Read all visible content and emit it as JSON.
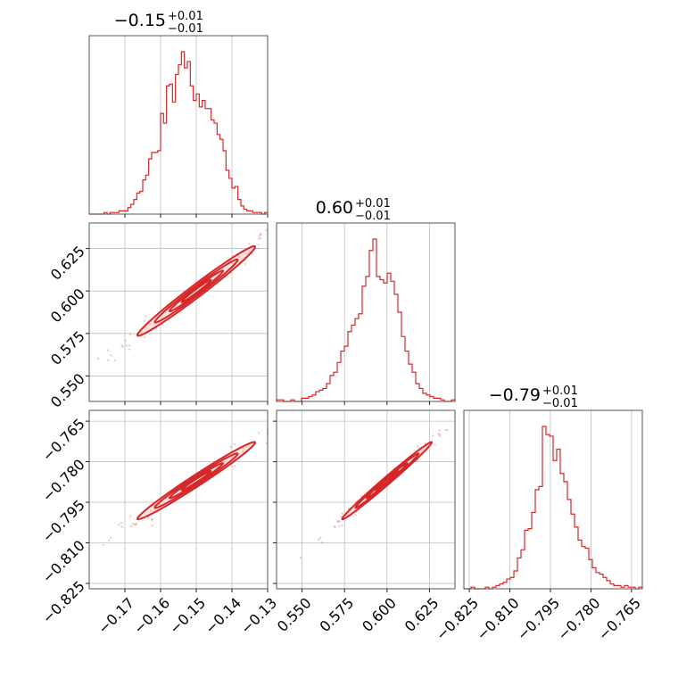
{
  "chart_data": {
    "type": "corner",
    "color": "#d62728",
    "parameters": [
      {
        "title": "−0.15",
        "title_plus": "+0.01",
        "title_minus": "−0.01",
        "median": -0.15,
        "sigma": 0.0075,
        "range": [
          -0.18,
          -0.13
        ],
        "ticks": [
          -0.17,
          -0.16,
          -0.15,
          -0.14,
          -0.13
        ],
        "tick_labels": [
          "−0.17",
          "−0.16",
          "−0.15",
          "−0.14",
          "−0.13"
        ],
        "hist": [
          0.0,
          0.0,
          0.0,
          0.0,
          0.0,
          0.01,
          0.0,
          0.01,
          0.01,
          0.01,
          0.02,
          0.02,
          0.02,
          0.04,
          0.06,
          0.09,
          0.13,
          0.14,
          0.21,
          0.24,
          0.34,
          0.38,
          0.38,
          0.39,
          0.62,
          0.56,
          0.79,
          0.8,
          0.69,
          0.86,
          0.92,
          1.0,
          0.9,
          0.94,
          0.79,
          0.7,
          0.74,
          0.66,
          0.7,
          0.65,
          0.65,
          0.58,
          0.56,
          0.49,
          0.46,
          0.39,
          0.27,
          0.22,
          0.16,
          0.17,
          0.09,
          0.05,
          0.03,
          0.02,
          0.02,
          0.01,
          0.01,
          0.01,
          0.0,
          0.01
        ]
      },
      {
        "title": "0.60",
        "title_plus": "+0.01",
        "title_minus": "−0.01",
        "median": 0.6,
        "sigma": 0.012,
        "range": [
          0.535,
          0.64
        ],
        "ticks": [
          0.55,
          0.575,
          0.6,
          0.625
        ],
        "tick_labels": [
          "0.550",
          "0.575",
          "0.600",
          "0.625"
        ],
        "hist": [
          0.01,
          0.01,
          0.0,
          0.0,
          0.01,
          0.0,
          0.0,
          0.02,
          0.02,
          0.03,
          0.04,
          0.06,
          0.07,
          0.08,
          0.11,
          0.16,
          0.18,
          0.24,
          0.31,
          0.34,
          0.43,
          0.47,
          0.51,
          0.54,
          0.71,
          0.77,
          0.93,
          1.0,
          0.77,
          0.75,
          0.73,
          0.79,
          0.74,
          0.66,
          0.55,
          0.4,
          0.31,
          0.23,
          0.18,
          0.11,
          0.08,
          0.05,
          0.04,
          0.03,
          0.02,
          0.02,
          0.01,
          0.0,
          0.0,
          0.01
        ]
      },
      {
        "title": "−0.79",
        "title_plus": "+0.01",
        "title_minus": "−0.01",
        "median": -0.787,
        "sigma": 0.0065,
        "range": [
          -0.827,
          -0.761
        ],
        "ticks": [
          -0.825,
          -0.81,
          -0.795,
          -0.78,
          -0.765
        ],
        "tick_labels": [
          "−0.825",
          "−0.810",
          "−0.795",
          "−0.780",
          "−0.765"
        ],
        "hist": [
          0.0,
          0.0,
          0.01,
          0.0,
          0.0,
          0.0,
          0.01,
          0.0,
          0.01,
          0.02,
          0.03,
          0.04,
          0.06,
          0.07,
          0.11,
          0.19,
          0.24,
          0.36,
          0.37,
          0.47,
          0.61,
          0.63,
          1.0,
          0.95,
          0.94,
          0.79,
          0.86,
          0.71,
          0.66,
          0.55,
          0.46,
          0.38,
          0.3,
          0.26,
          0.25,
          0.18,
          0.13,
          0.1,
          0.09,
          0.07,
          0.05,
          0.03,
          0.02,
          0.02,
          0.01,
          0.02,
          0.01,
          0.01,
          0.0,
          0.01
        ]
      }
    ],
    "correlation": {
      "p0_p1": 0.985,
      "p0_p2": 0.985,
      "p1_p2": 0.992
    },
    "grid": true
  }
}
